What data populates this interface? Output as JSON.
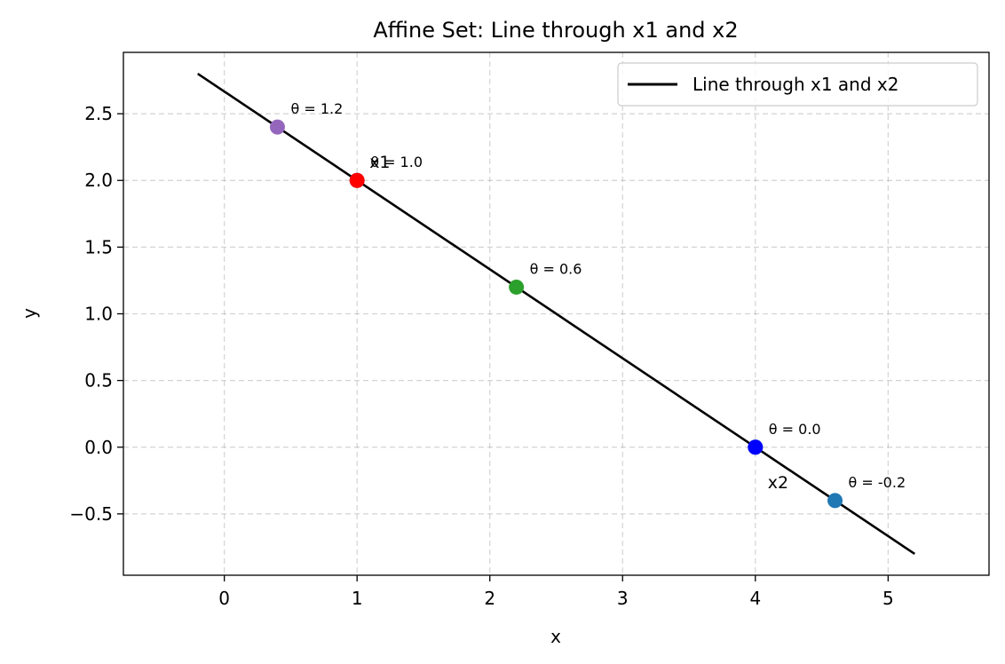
{
  "chart_data": {
    "type": "line",
    "title": "Affine Set: Line through x1 and x2",
    "xlabel": "x",
    "ylabel": "y",
    "xlim": [
      -0.76,
      5.76
    ],
    "ylim": [
      -0.96,
      2.96
    ],
    "x_ticks": [
      0,
      1,
      2,
      3,
      4,
      5
    ],
    "y_ticks": [
      -0.5,
      0.0,
      0.5,
      1.0,
      1.5,
      2.0,
      2.5
    ],
    "x_tick_labels": [
      "0",
      "1",
      "2",
      "3",
      "4",
      "5"
    ],
    "y_tick_labels": [
      "−0.5",
      "0.0",
      "0.5",
      "1.0",
      "1.5",
      "2.0",
      "2.5"
    ],
    "grid": true,
    "legend_position": "top-right",
    "line": {
      "name": "Line through x1 and x2",
      "color": "#000000",
      "x": [
        -0.2,
        5.2
      ],
      "y": [
        2.8,
        -0.8
      ]
    },
    "points": [
      {
        "x": 0.4,
        "y": 2.4,
        "color": "#9467bd",
        "label": "θ = 1.2"
      },
      {
        "x": 1.0,
        "y": 2.0,
        "color": "#1f77b4",
        "label": "θ = 1.0"
      },
      {
        "x": 2.2,
        "y": 1.2,
        "color": "#2ca02c",
        "label": "θ = 0.6"
      },
      {
        "x": 4.0,
        "y": 0.0,
        "color": "#1f77b4",
        "label": "θ = 0.0"
      },
      {
        "x": 4.6,
        "y": -0.4,
        "color": "#1f77b4",
        "label": "θ = -0.2"
      },
      {
        "x": 1.0,
        "y": 2.0,
        "color": "#ff0000",
        "label": ""
      },
      {
        "x": 4.0,
        "y": 0.0,
        "color": "#0000ff",
        "label": ""
      }
    ],
    "named_points": [
      {
        "x": 1.0,
        "y": 2.0,
        "label": "x1"
      },
      {
        "x": 4.0,
        "y": 0.0,
        "label": "x2"
      }
    ]
  }
}
